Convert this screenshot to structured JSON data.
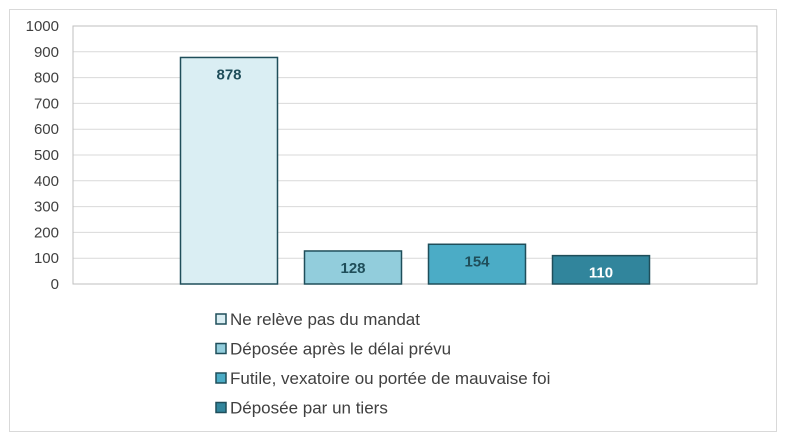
{
  "chart_data": {
    "type": "bar",
    "title": "",
    "xlabel": "",
    "ylabel": "",
    "ylim": [
      0,
      1000
    ],
    "yticks": [
      0,
      100,
      200,
      300,
      400,
      500,
      600,
      700,
      800,
      900,
      1000
    ],
    "grid": true,
    "legend_position": "bottom",
    "series": [
      {
        "name": "Ne relève pas du mandat",
        "values": [
          878
        ],
        "fill": "#daeef3",
        "stroke": "#1f4e5a",
        "label_color": "#1f4e5a"
      },
      {
        "name": "Déposée après le délai prévu",
        "values": [
          128
        ],
        "fill": "#92cddc",
        "stroke": "#1f4e5a",
        "label_color": "#1f4e5a"
      },
      {
        "name": "Futile, vexatoire ou portée de mauvaise foi",
        "values": [
          154
        ],
        "fill": "#4bacc6",
        "stroke": "#1f4e5a",
        "label_color": "#1f4e5a"
      },
      {
        "name": "Déposée par un tiers",
        "values": [
          110
        ],
        "fill": "#31859c",
        "stroke": "#1f4e5a",
        "label_color": "#ffffff"
      }
    ]
  }
}
